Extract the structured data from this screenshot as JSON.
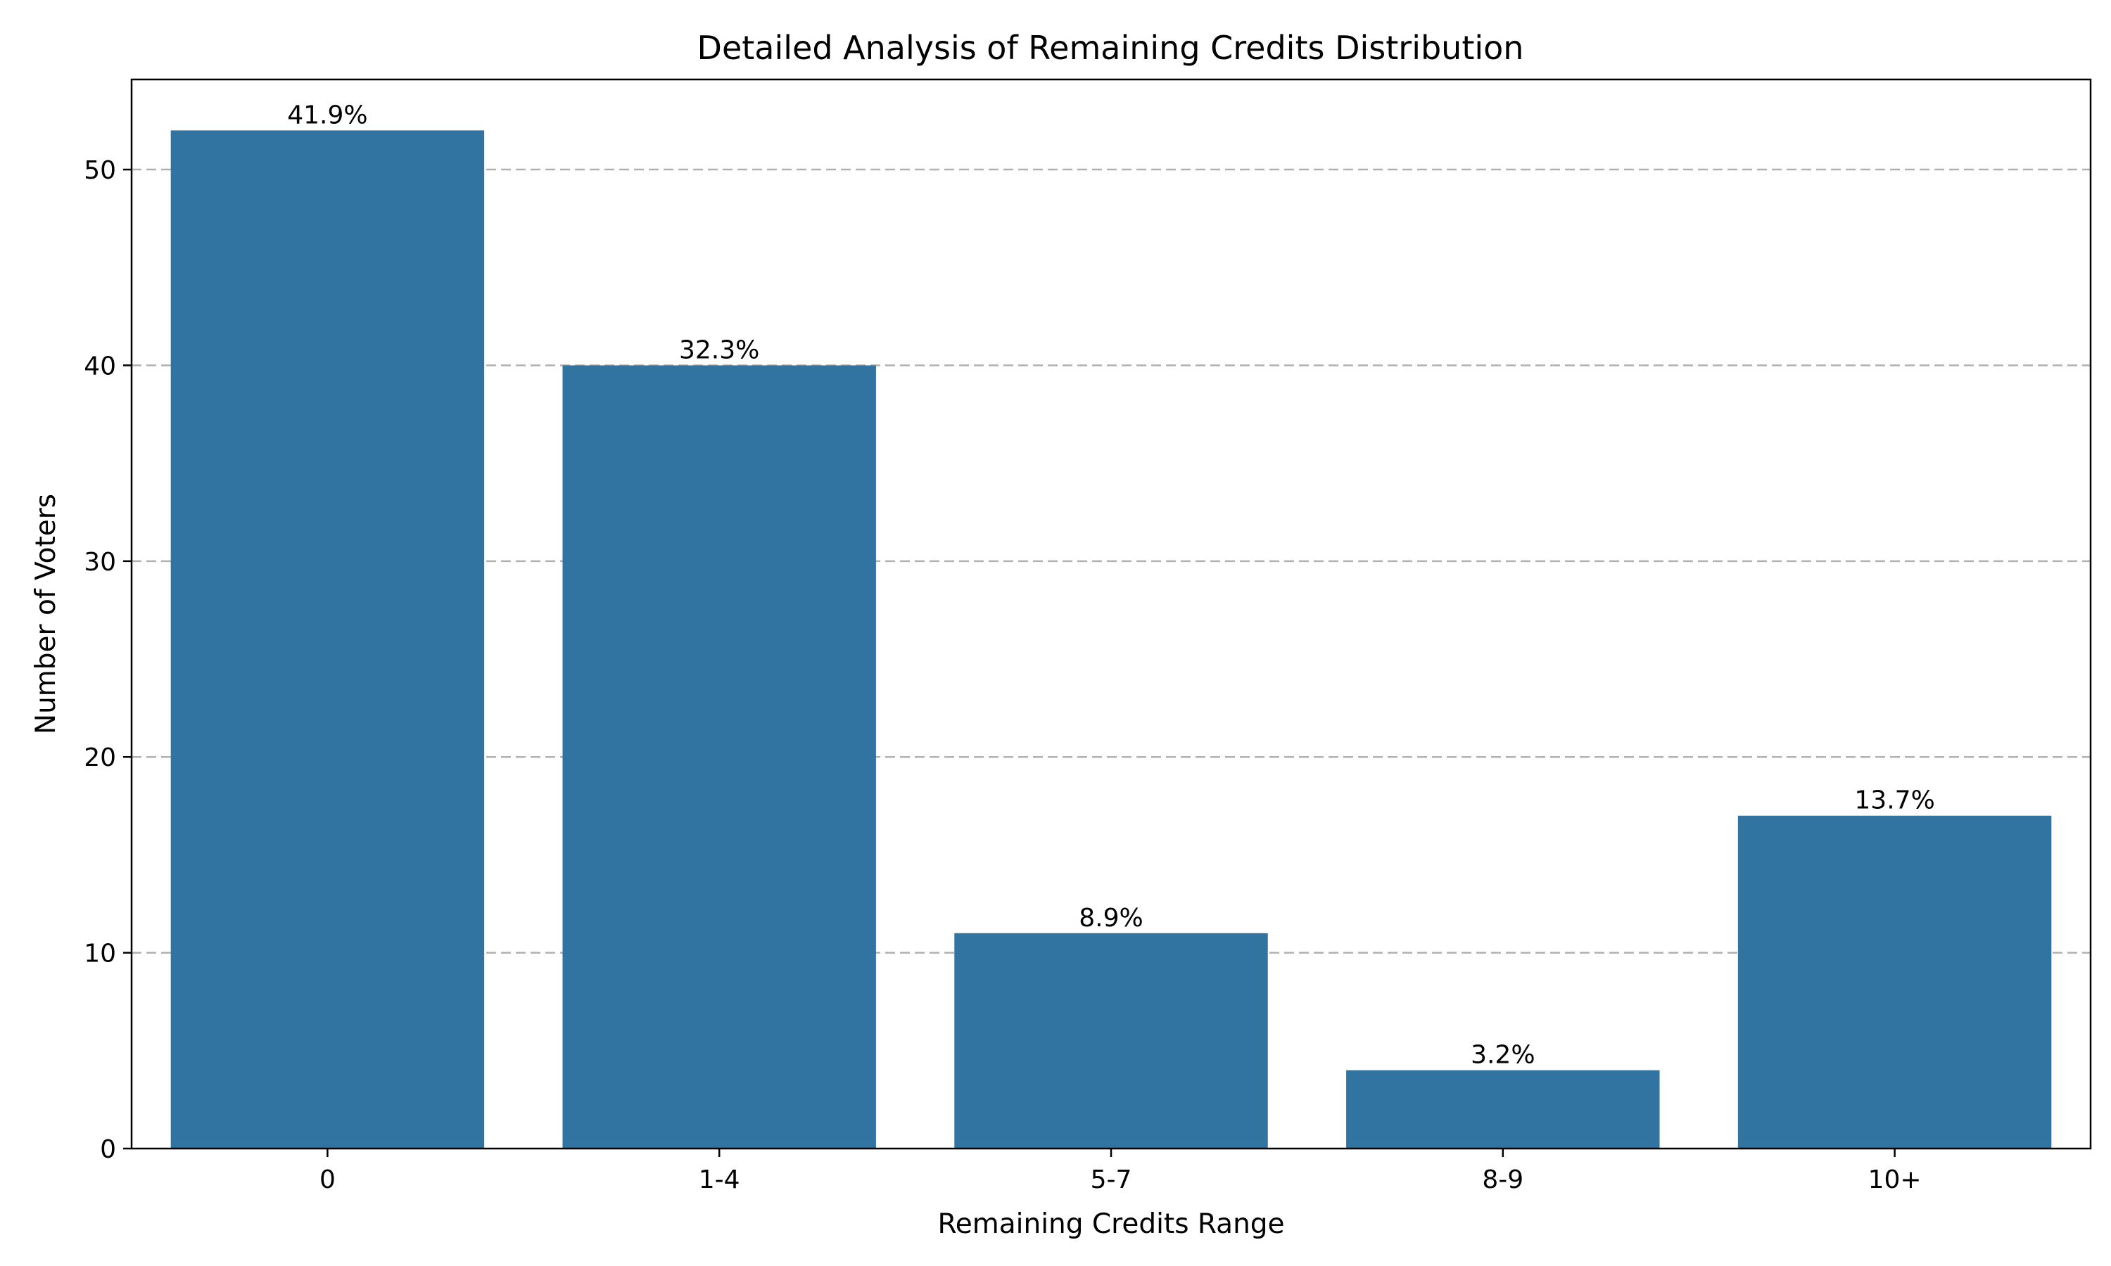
{
  "chart_data": {
    "type": "bar",
    "title": "Detailed Analysis of Remaining Credits Distribution",
    "xlabel": "Remaining Credits Range",
    "ylabel": "Number of Voters",
    "categories": [
      "0",
      "1-4",
      "5-7",
      "8-9",
      "10+"
    ],
    "values": [
      52,
      40,
      11,
      4,
      17
    ],
    "data_labels": [
      "41.9%",
      "32.3%",
      "8.9%",
      "3.2%",
      "13.7%"
    ],
    "ylim": [
      0,
      54.6
    ],
    "yticks": [
      0,
      10,
      20,
      30,
      40,
      50
    ],
    "grid": "horizontal, dashed",
    "legend": "none",
    "bar_color": "#3274a1"
  }
}
